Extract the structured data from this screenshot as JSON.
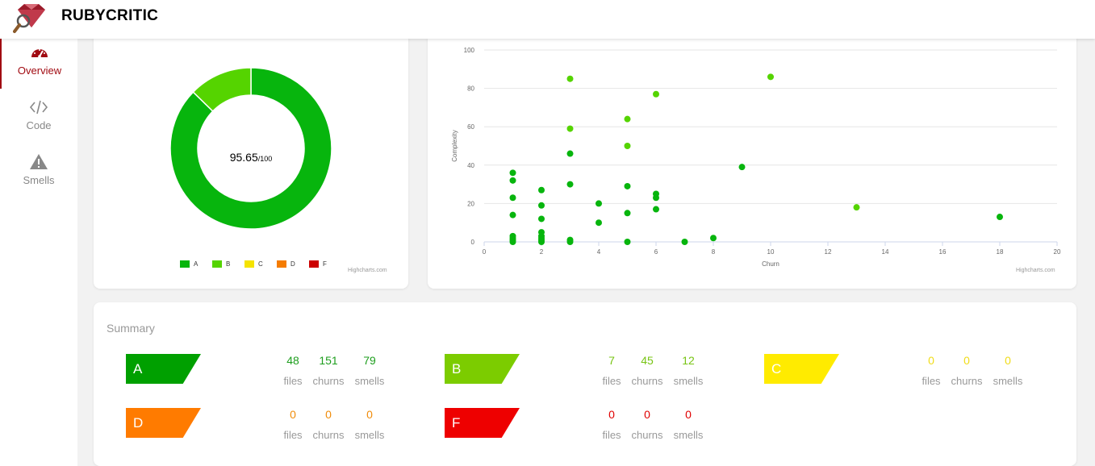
{
  "app": {
    "title": "RUBYCRITIC"
  },
  "nav": [
    {
      "label": "Overview",
      "icon": "dashboard-icon",
      "active": true
    },
    {
      "label": "Code",
      "icon": "code-icon",
      "active": false
    },
    {
      "label": "Smells",
      "icon": "warning-icon",
      "active": false
    }
  ],
  "gpa": {
    "score": "95.65",
    "out_of": "/100",
    "credits": "Highcharts.com",
    "slices": [
      {
        "grade": "A",
        "fraction": 0.873,
        "color": "#07b50d"
      },
      {
        "grade": "B",
        "fraction": 0.127,
        "color": "#55d400"
      }
    ],
    "legend": [
      {
        "label": "A",
        "color": "#07b50d"
      },
      {
        "label": "B",
        "color": "#55d400"
      },
      {
        "label": "C",
        "color": "#f5e300"
      },
      {
        "label": "D",
        "color": "#f57c00"
      },
      {
        "label": "F",
        "color": "#cc0000"
      }
    ]
  },
  "chart_data": {
    "type": "scatter",
    "xlabel": "Churn",
    "ylabel": "Complexity",
    "xlim": [
      0,
      20
    ],
    "ylim": [
      0,
      100
    ],
    "x_ticks": [
      "0",
      "2",
      "4",
      "6",
      "8",
      "10",
      "12",
      "14",
      "16",
      "18",
      "20"
    ],
    "y_ticks": [
      "0",
      "20",
      "40",
      "60",
      "80",
      "100"
    ],
    "credits": "Highcharts.com",
    "series": [
      {
        "color": "#07b50d",
        "points": [
          [
            1,
            36
          ],
          [
            1,
            32
          ],
          [
            1,
            23
          ],
          [
            1,
            14
          ],
          [
            1,
            3
          ],
          [
            1,
            2
          ],
          [
            1,
            1
          ],
          [
            1,
            0
          ],
          [
            2,
            27
          ],
          [
            2,
            19
          ],
          [
            2,
            12
          ],
          [
            2,
            5
          ],
          [
            2,
            3
          ],
          [
            2,
            2
          ],
          [
            2,
            1
          ],
          [
            2,
            0
          ],
          [
            3,
            46
          ],
          [
            3,
            30
          ],
          [
            3,
            1
          ],
          [
            3,
            0
          ],
          [
            4,
            20
          ],
          [
            4,
            10
          ],
          [
            5,
            29
          ],
          [
            5,
            15
          ],
          [
            5,
            0
          ],
          [
            6,
            25
          ],
          [
            6,
            23
          ],
          [
            6,
            17
          ],
          [
            7,
            0
          ],
          [
            8,
            2
          ],
          [
            9,
            39
          ],
          [
            18,
            13
          ]
        ]
      },
      {
        "color": "#55d400",
        "points": [
          [
            3,
            85
          ],
          [
            3,
            59
          ],
          [
            5,
            64
          ],
          [
            5,
            50
          ],
          [
            6,
            77
          ],
          [
            10,
            86
          ],
          [
            13,
            18
          ]
        ]
      }
    ]
  },
  "summary": {
    "title": "Summary",
    "captions": {
      "files": "files",
      "churns": "churns",
      "smells": "smells"
    },
    "grades": [
      {
        "grade": "A",
        "color": "#00a000",
        "text_color": "#1e9e1e",
        "files": "48",
        "churns": "151",
        "smells": "79"
      },
      {
        "grade": "B",
        "color": "#7ccc00",
        "text_color": "#78c414",
        "files": "7",
        "churns": "45",
        "smells": "12"
      },
      {
        "grade": "C",
        "color": "#ffeb00",
        "text_color": "#f0dc18",
        "files": "0",
        "churns": "0",
        "smells": "0"
      },
      {
        "grade": "D",
        "color": "#ff7b00",
        "text_color": "#f08c0a",
        "files": "0",
        "churns": "0",
        "smells": "0"
      },
      {
        "grade": "F",
        "color": "#ee0000",
        "text_color": "#e00000",
        "files": "0",
        "churns": "0",
        "smells": "0"
      }
    ]
  }
}
